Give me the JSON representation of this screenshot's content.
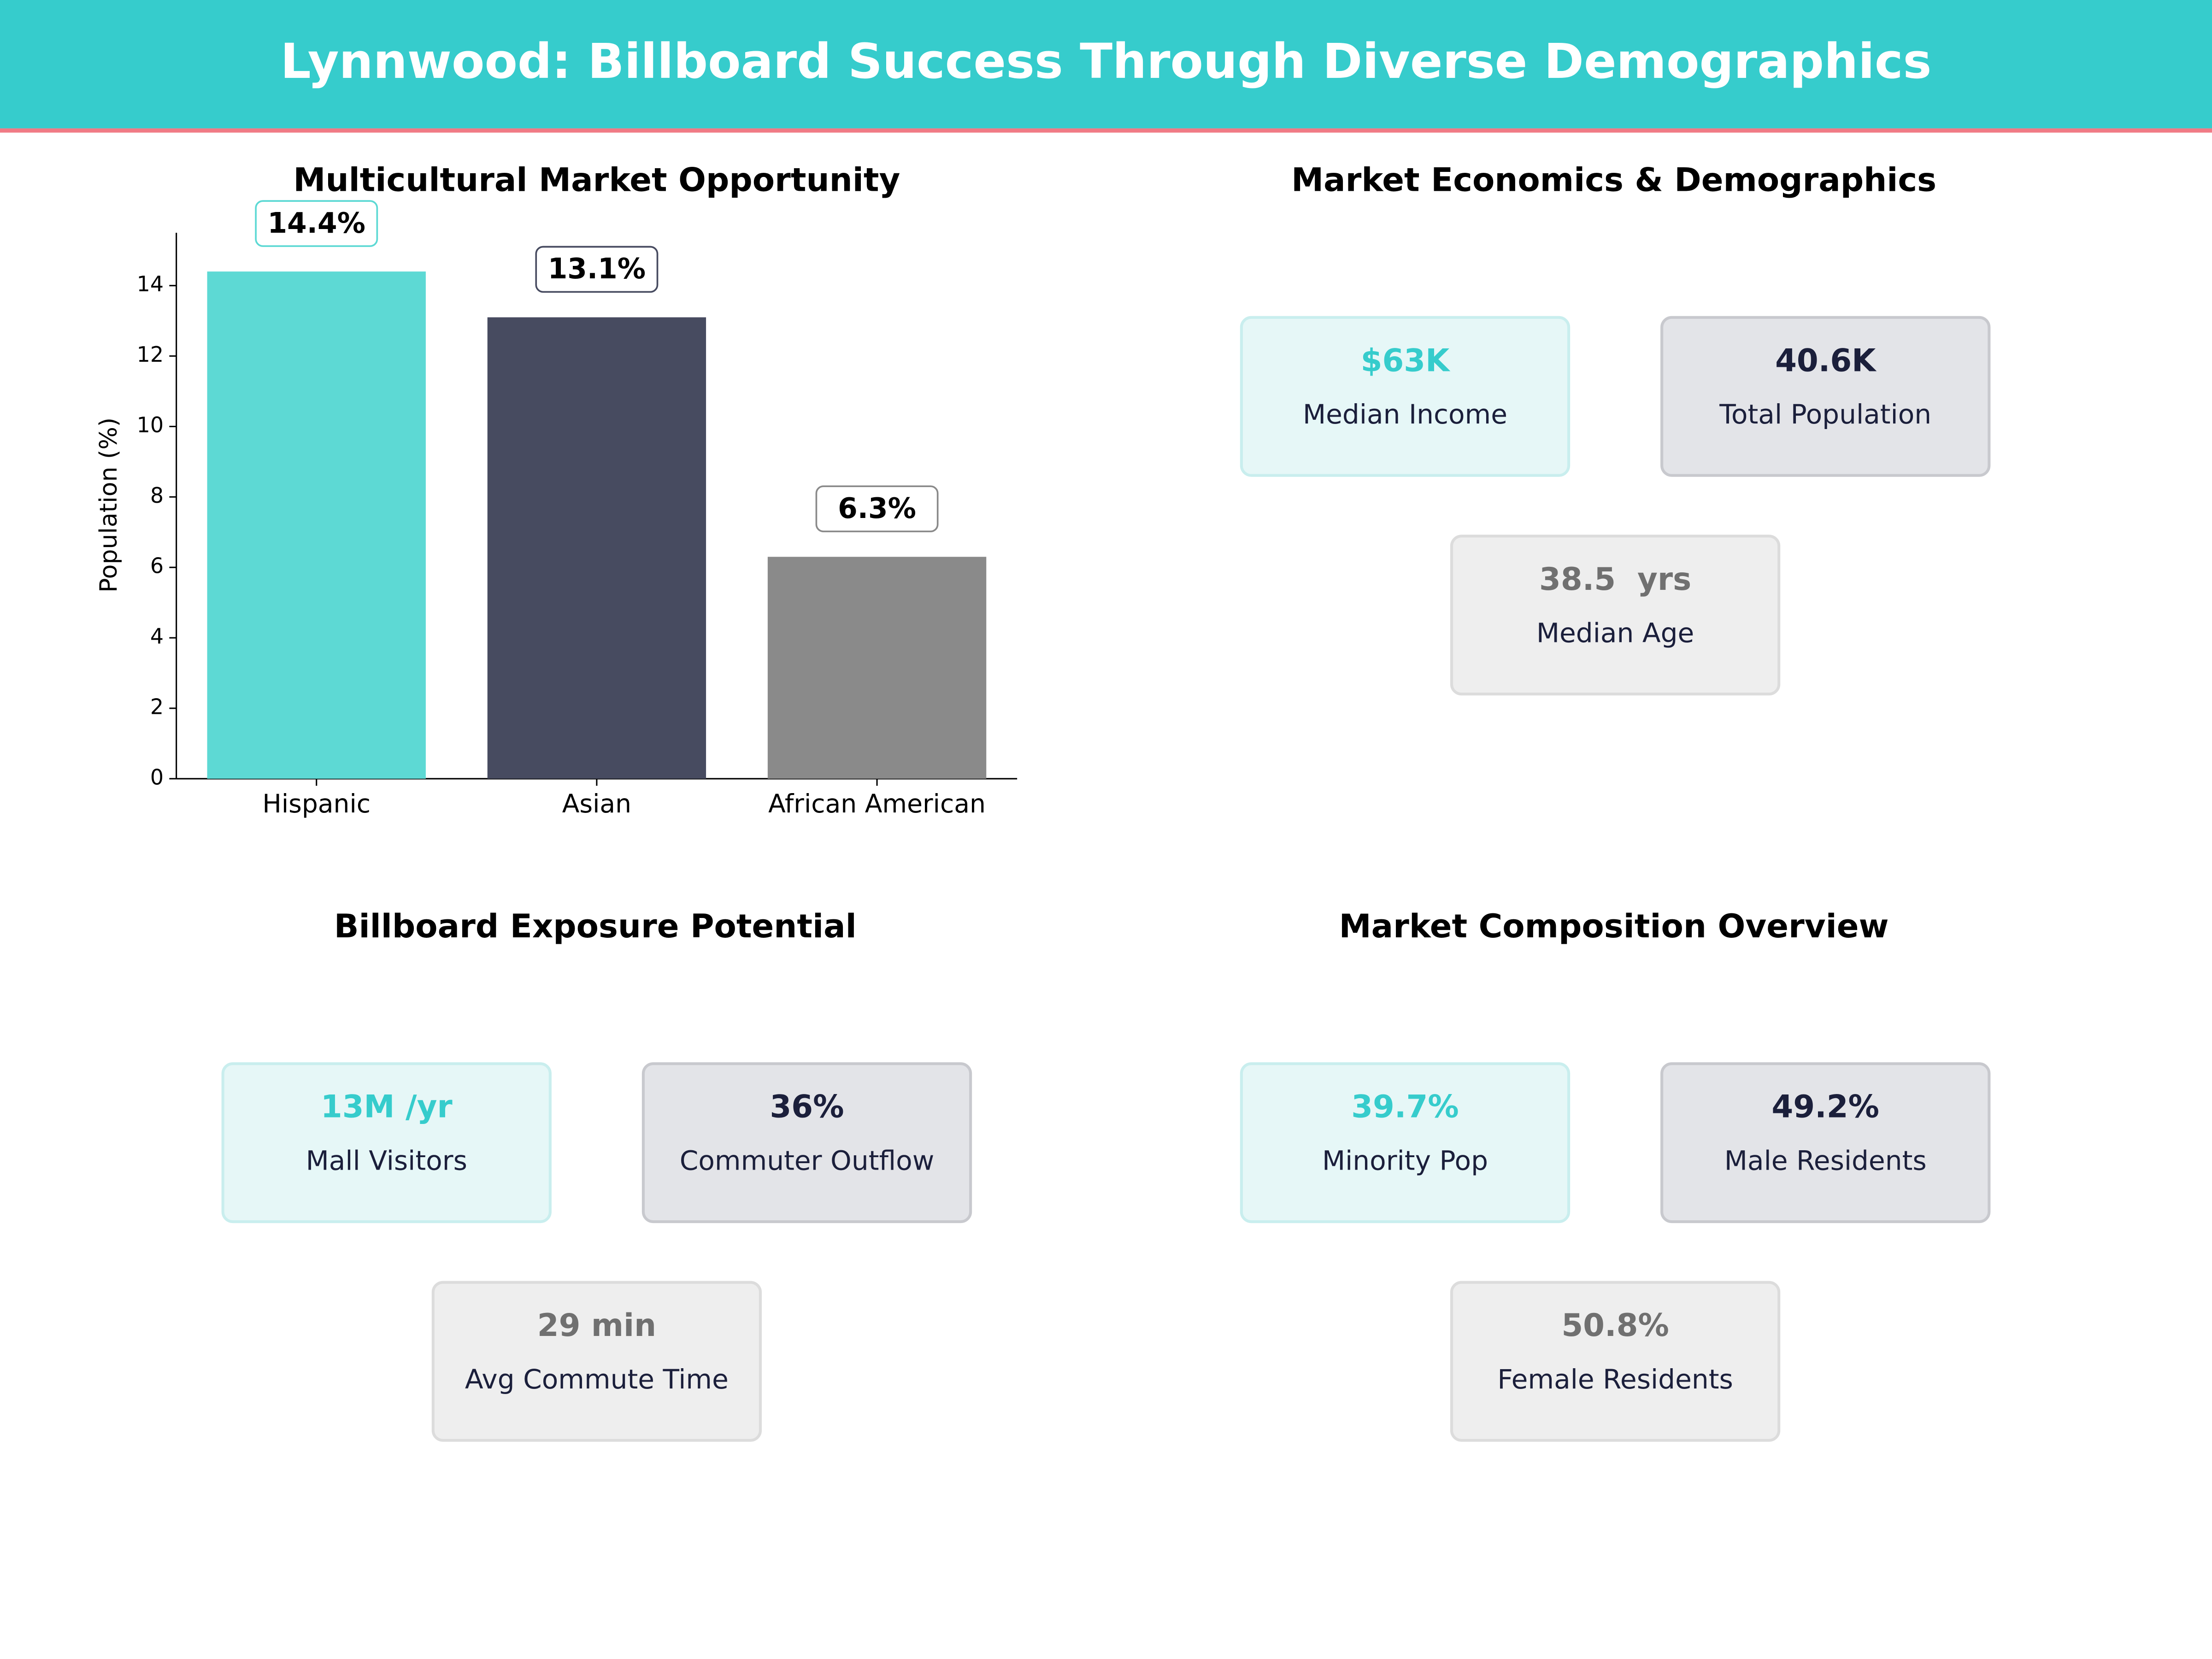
{
  "title": "Lynnwood: Billboard Success Through Diverse Demographics",
  "chart_data": {
    "type": "bar",
    "title": "Multicultural Market Opportunity",
    "y_label": "Population (%)",
    "categories": [
      "Hispanic",
      "Asian",
      "African American"
    ],
    "values": [
      14.4,
      13.1,
      6.3
    ],
    "value_labels": [
      "14.4%",
      "13.1%",
      "6.3%"
    ],
    "colors": [
      "#5dd9d4",
      "#474b60",
      "#8a8a8a"
    ],
    "ylim": [
      0,
      15.5
    ],
    "yticks": [
      0,
      2,
      4,
      6,
      8,
      10,
      12,
      14
    ]
  },
  "panels": [
    {
      "title": "Market Economics & Demographics",
      "cards": [
        {
          "value": "$63K",
          "label": "Median Income",
          "color": "#36cccc"
        },
        {
          "value": "40.6K",
          "label": "Total Population",
          "color": "#1b1f3b"
        },
        {
          "value": "38.5  yrs",
          "label": "Median Age",
          "color": "#707070"
        }
      ]
    },
    {
      "title": "Billboard Exposure Potential",
      "cards": [
        {
          "value": "13M /yr",
          "label": "Mall Visitors",
          "color": "#36cccc"
        },
        {
          "value": "36%",
          "label": "Commuter Outflow",
          "color": "#1b1f3b"
        },
        {
          "value": "29 min",
          "label": "Avg Commute Time",
          "color": "#707070"
        }
      ]
    },
    {
      "title": "Market Composition Overview",
      "cards": [
        {
          "value": "39.7%",
          "label": "Minority Pop",
          "color": "#36cccc"
        },
        {
          "value": "49.2%",
          "label": "Male Residents",
          "color": "#1b1f3b"
        },
        {
          "value": "50.8%",
          "label": "Female Residents",
          "color": "#707070"
        }
      ]
    }
  ]
}
